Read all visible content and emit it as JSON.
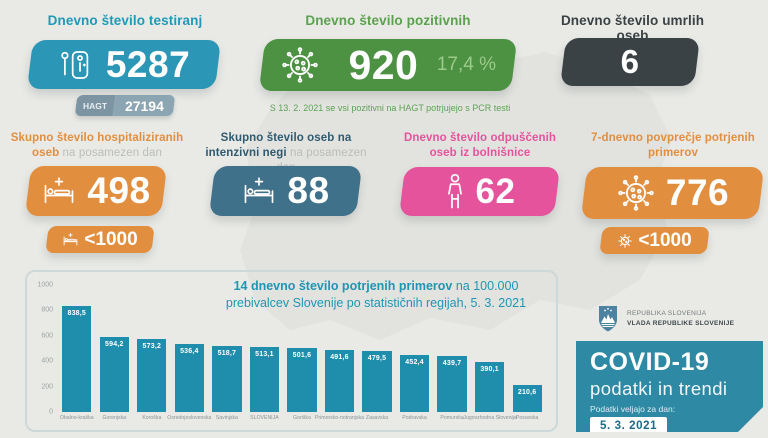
{
  "colors": {
    "background": "#e9eae6",
    "teal": "#2b96b6",
    "green": "#4d9143",
    "dark_gray": "#3b4245",
    "orange": "#e28e3f",
    "steel_blue": "#40718a",
    "pink": "#e5539c",
    "bar_teal": "#1f8dac",
    "covid_box_teal": "#2e89a4"
  },
  "row1": {
    "tests": {
      "title": "Dnevno število testiranj",
      "value": "5287",
      "hagt_label": "HAGT",
      "hagt_value": "27194",
      "icon": "rapid-test-icon"
    },
    "positives": {
      "title": "Dnevno število pozitivnih",
      "value": "920",
      "percent": "17,4 %",
      "note": "S 13. 2. 2021 se vsi pozitivni na HAGT potrjujejo s PCR testi",
      "icon": "virus-icon"
    },
    "deaths": {
      "title": "Dnevno število umrlih oseb",
      "value": "6"
    }
  },
  "row2": {
    "hospitalized": {
      "title_bold": "Skupno število hospitaliziranih oseb",
      "title_gray": " na posamezen dan",
      "value": "498",
      "threshold": "<1000",
      "icon": "hospital-bed-icon"
    },
    "icu": {
      "title_bold": "Skupno število oseb na intenzivni negi",
      "title_gray": " na posamezen dan",
      "value": "88",
      "icon": "hospital-bed-icon"
    },
    "discharged": {
      "title": "Dnevno število odpuščenih oseb iz bolnišnice",
      "value": "62",
      "icon": "person-icon"
    },
    "avg7": {
      "title": "7-dnevno povprečje potrjenih primerov",
      "value": "776",
      "threshold": "<1000",
      "icon": "virus-icon"
    }
  },
  "chart_data": {
    "type": "bar",
    "title_bold": "14 dnevno število potrjenih primerov",
    "title_rest": " na 100.000 prebivalcev Slovenije po statističnih regijah, 5. 3. 2021",
    "categories": [
      "Obalno-kraška",
      "Gorenjska",
      "Koroška",
      "Osrednjeslovenska",
      "Savinjska",
      "SLOVENIJA",
      "Goriška",
      "Primorsko-notranjska",
      "Zasavska",
      "Podravska",
      "Pomurska",
      "Jugovzhodna Slovenija",
      "Posavska"
    ],
    "values": [
      838.5,
      594.2,
      573.2,
      536.4,
      518.7,
      513.1,
      501.6,
      491.6,
      479.5,
      452.4,
      439.7,
      390.1,
      210.6
    ],
    "value_labels": [
      "838,5",
      "594,2",
      "573,2",
      "536,4",
      "518,7",
      "513,1",
      "501,6",
      "491,6",
      "479,5",
      "452,4",
      "439,7",
      "390,1",
      "210,6"
    ],
    "ylim": [
      0,
      1000
    ],
    "yticks": [
      "1000",
      "800",
      "600",
      "400",
      "200",
      "0"
    ],
    "grid": false,
    "legend": false,
    "bar_color": "#1f8dac"
  },
  "footer": {
    "gov_line1": "REPUBLIKA SLOVENIJA",
    "gov_line2": "VLADA REPUBLIKE SLOVENIJE",
    "covid_title": "COVID-19",
    "covid_subtitle": "podatki in trendi",
    "date_label": "Podatki veljajo za dan:",
    "date_value": "5. 3. 2021"
  }
}
